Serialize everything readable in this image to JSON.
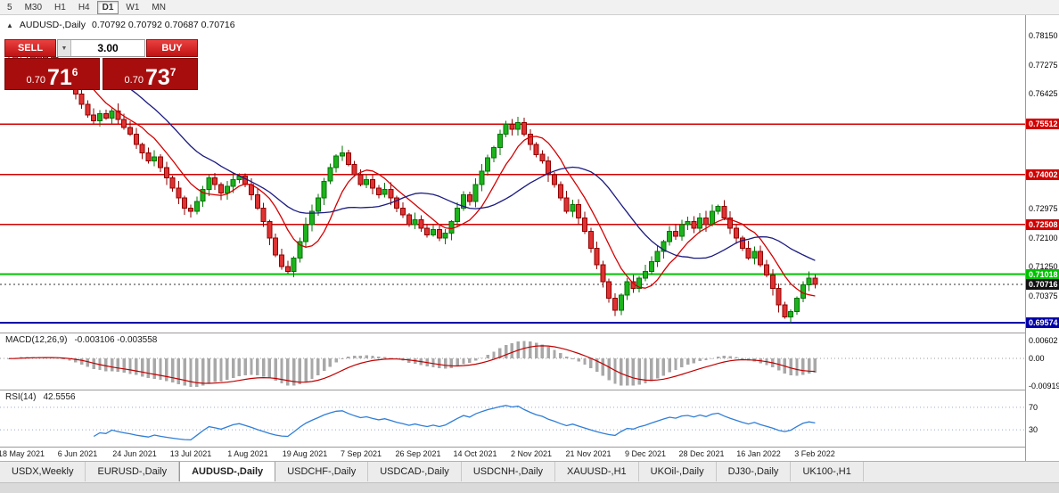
{
  "toolbar": {
    "periods": [
      {
        "label": "5",
        "active": false
      },
      {
        "label": "M30",
        "active": false
      },
      {
        "label": "H1",
        "active": false
      },
      {
        "label": "H4",
        "active": false
      },
      {
        "label": "D1",
        "active": true
      },
      {
        "label": "W1",
        "active": false
      },
      {
        "label": "MN",
        "active": false
      }
    ]
  },
  "chart": {
    "title": "AUDUSD-,Daily",
    "ohlc": "0.70792 0.70792 0.70687 0.70716"
  },
  "trade_widget": {
    "sell_label": "SELL",
    "buy_label": "BUY",
    "volume": "3.00",
    "sell_price": {
      "prefix": "0.70",
      "big": "71",
      "sup": "6"
    },
    "buy_price": {
      "prefix": "0.70",
      "big": "73",
      "sup": "7"
    }
  },
  "levels": [
    {
      "price": 0.75512,
      "label": "0.75512",
      "color": "#d20000",
      "thickness": 1.5
    },
    {
      "price": 0.74002,
      "label": "0.74002",
      "color": "#d20000",
      "thickness": 1.5
    },
    {
      "price": 0.72508,
      "label": "0.72508",
      "color": "#d20000",
      "thickness": 1.5
    },
    {
      "price": 0.71018,
      "label": "0.71018",
      "color": "#00c300",
      "thickness": 2
    },
    {
      "price": 0.69574,
      "label": "0.69574",
      "color": "#0000a8",
      "thickness": 2
    }
  ],
  "current_price": {
    "price": 0.70716,
    "label": "0.70716",
    "bg": "#111111"
  },
  "axis_ticks": [
    {
      "price": 0.7815,
      "label": "0.78150"
    },
    {
      "price": 0.77275,
      "label": "0.77275"
    },
    {
      "price": 0.76425,
      "label": "0.76425"
    },
    {
      "price": 0.72975,
      "label": "0.72975"
    },
    {
      "price": 0.721,
      "label": "0.72100"
    },
    {
      "price": 0.7125,
      "label": "0.71250"
    },
    {
      "price": 0.70375,
      "label": "0.70375"
    }
  ],
  "macd": {
    "name": "MACD(12,26,9)",
    "values": "-0.003106 -0.003558",
    "axis_labels": [
      {
        "value": 0.00602,
        "label": "0.00602"
      },
      {
        "value": 0,
        "label": "0.00"
      },
      {
        "value": -0.00919,
        "label": "-0.00919"
      }
    ],
    "range": [
      -0.0105,
      0.0085
    ]
  },
  "rsi": {
    "name": "RSI(14)",
    "value": "42.5556",
    "levels": [
      {
        "value": 70,
        "label": "70"
      },
      {
        "value": 30,
        "label": "30"
      }
    ],
    "range": [
      0,
      100
    ]
  },
  "tabs": {
    "active_index": 2,
    "items": [
      {
        "label": "USDX,Weekly"
      },
      {
        "label": "EURUSD-,Daily"
      },
      {
        "label": "AUDUSD-,Daily"
      },
      {
        "label": "USDCHF-,Daily"
      },
      {
        "label": "USDCAD-,Daily"
      },
      {
        "label": "USDCNH-,Daily"
      },
      {
        "label": "XAUUSD-,H1"
      },
      {
        "label": "UKOil-,Daily"
      },
      {
        "label": "DJ30-,Daily"
      },
      {
        "label": "UK100-,H1"
      }
    ]
  },
  "colors": {
    "candle_up_fill": "#1cb31c",
    "candle_up_stroke": "#067306",
    "candle_down_fill": "#e03232",
    "candle_down_stroke": "#8f0000",
    "ma_fast": "#d40000",
    "ma_slow": "#1a1a80",
    "macd_hist": "#a8a8a8",
    "macd_signal": "#c00000",
    "rsi_line": "#2f7ed8"
  },
  "chart_data": {
    "type": "candlestick",
    "symbol": "AUDUSD-",
    "period": "Daily",
    "last_bar_ohlc": [
      0.70792,
      0.70792,
      0.70687,
      0.70716
    ],
    "y_axis_range": [
      0.6928,
      0.7876
    ],
    "x_labels": [
      "18 May 2021",
      "6 Jun 2021",
      "24 Jun 2021",
      "13 Jul 2021",
      "1 Aug 2021",
      "19 Aug 2021",
      "7 Sep 2021",
      "26 Sep 2021",
      "14 Oct 2021",
      "2 Nov 2021",
      "21 Nov 2021",
      "9 Dec 2021",
      "28 Dec 2021",
      "16 Jan 2022",
      "3 Feb 2022"
    ],
    "closes": [
      0.7735,
      0.7758,
      0.7772,
      0.776,
      0.7745,
      0.7752,
      0.7738,
      0.7744,
      0.772,
      0.77,
      0.7672,
      0.764,
      0.761,
      0.7578,
      0.756,
      0.7582,
      0.7568,
      0.759,
      0.7565,
      0.754,
      0.752,
      0.749,
      0.7465,
      0.744,
      0.7452,
      0.742,
      0.739,
      0.736,
      0.733,
      0.73,
      0.729,
      0.732,
      0.7355,
      0.739,
      0.737,
      0.7345,
      0.7365,
      0.7385,
      0.7395,
      0.737,
      0.734,
      0.73,
      0.726,
      0.721,
      0.716,
      0.7125,
      0.711,
      0.715,
      0.72,
      0.725,
      0.729,
      0.733,
      0.738,
      0.742,
      0.7455,
      0.7465,
      0.743,
      0.74,
      0.737,
      0.7385,
      0.736,
      0.734,
      0.7355,
      0.733,
      0.73,
      0.728,
      0.725,
      0.7265,
      0.724,
      0.722,
      0.7235,
      0.721,
      0.7225,
      0.726,
      0.73,
      0.734,
      0.732,
      0.737,
      0.741,
      0.745,
      0.748,
      0.752,
      0.755,
      0.7535,
      0.7555,
      0.752,
      0.749,
      0.746,
      0.744,
      0.74,
      0.737,
      0.733,
      0.729,
      0.731,
      0.727,
      0.723,
      0.718,
      0.713,
      0.708,
      0.703,
      0.6995,
      0.704,
      0.708,
      0.706,
      0.709,
      0.711,
      0.714,
      0.717,
      0.72,
      0.723,
      0.7215,
      0.725,
      0.726,
      0.724,
      0.727,
      0.725,
      0.729,
      0.7305,
      0.727,
      0.724,
      0.721,
      0.718,
      0.715,
      0.717,
      0.713,
      0.71,
      0.706,
      0.701,
      0.6975,
      0.699,
      0.703,
      0.707,
      0.709,
      0.70716
    ]
  }
}
